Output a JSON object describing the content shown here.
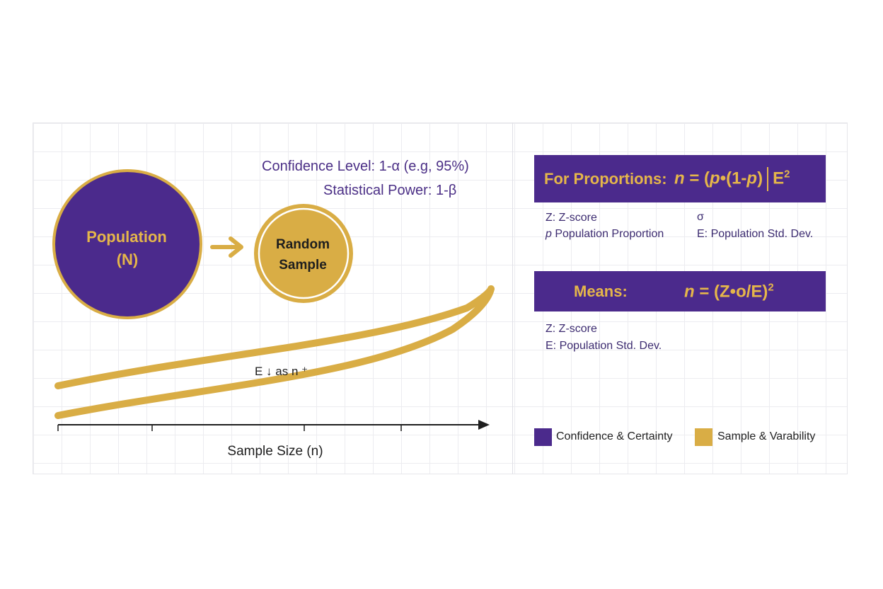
{
  "params": {
    "confidence_level": "Confidence Level: 1-α (e.g, 95%)",
    "statistical_power": "Statistical Power: 1-β"
  },
  "population": {
    "line1": "Population",
    "line2": "(N)"
  },
  "sample": {
    "line1": "Random",
    "line2": "Sample"
  },
  "curve_label": "E ↓ as n ⁺",
  "axis_label": "Sample Size (n)",
  "proportions": {
    "label": "For Proportions:",
    "formula_lhs": "n",
    "formula_eq": " = (",
    "formula_p1": "p",
    "formula_dot": "•(1-",
    "formula_p2": "p",
    "formula_close": ")",
    "formula_e": "E",
    "formula_exp": "2",
    "defs": {
      "z": "Z: Z-score",
      "sigma": "σ",
      "p_symbol": "p",
      "p_text": " Population Proportion",
      "e": "E: Population Std. Dev."
    }
  },
  "means": {
    "label": "Means:",
    "formula_lhs": "n",
    "formula_rhs": " = (Z•o/E)",
    "formula_exp": "2",
    "defs": {
      "z": "Z: Z-score",
      "e": "E: Population Std. Dev."
    }
  },
  "legend": [
    {
      "label": "Confidence & Certainty",
      "color": "#4b2a8c"
    },
    {
      "label": "Sample & Varability",
      "color": "#d9ad45"
    }
  ],
  "colors": {
    "purple": "#4b2a8c",
    "gold": "#d9ad45",
    "gold_text": "#e5b64a"
  }
}
